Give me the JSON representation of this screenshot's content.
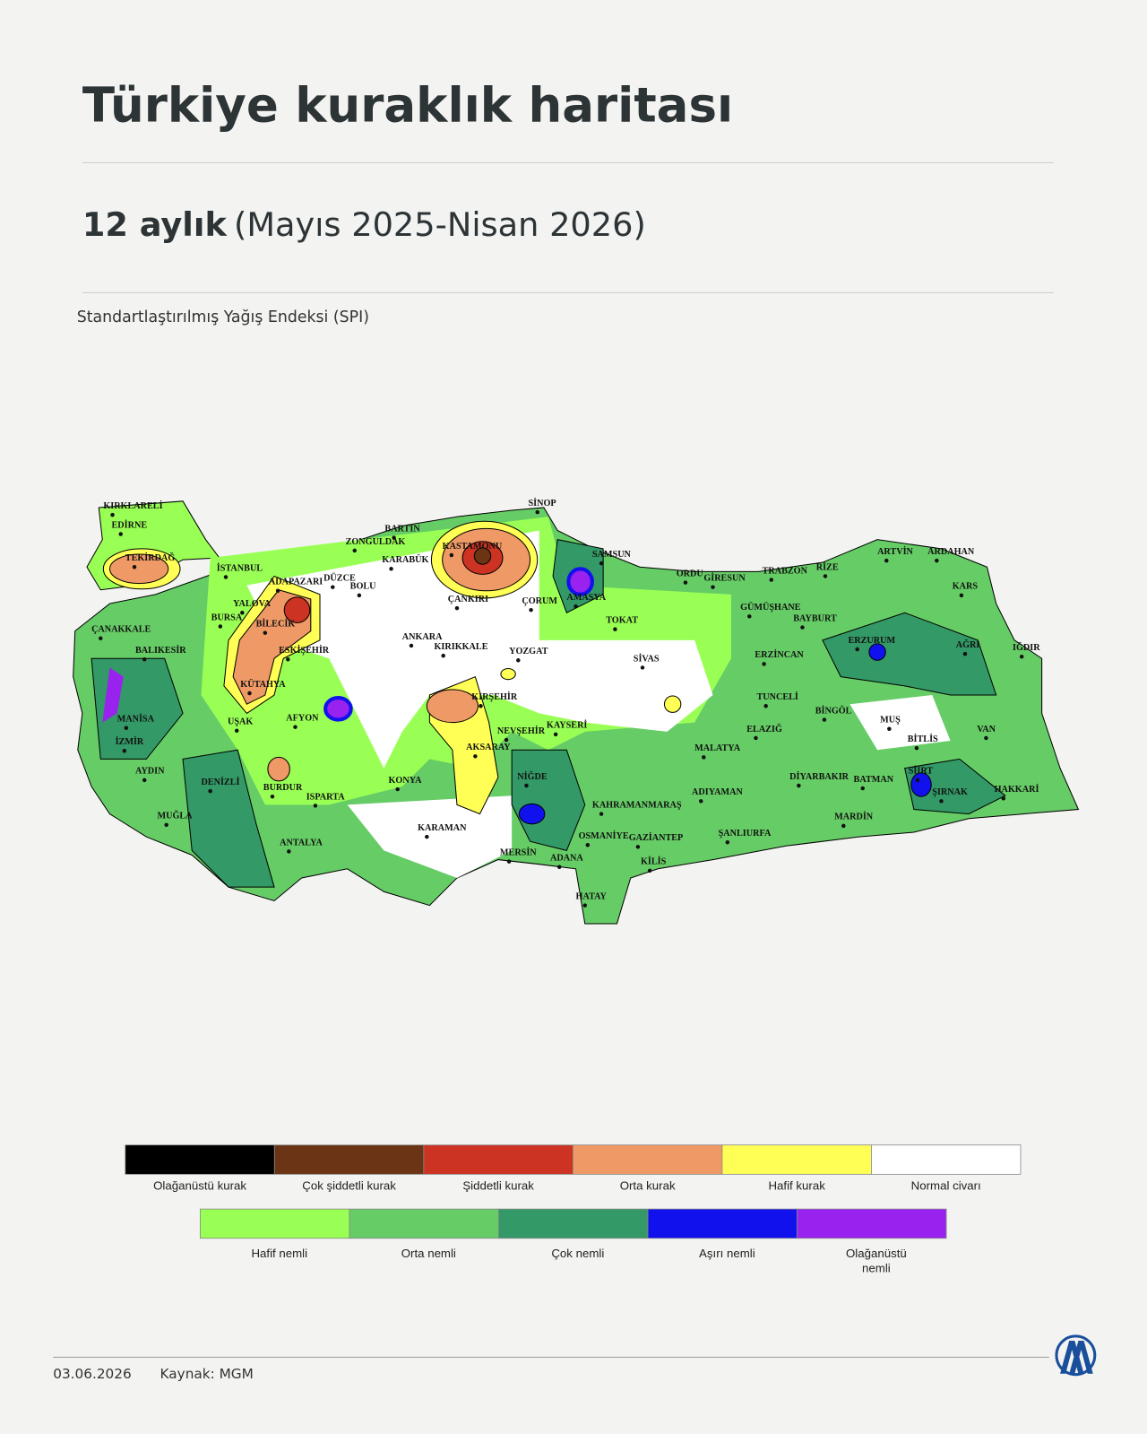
{
  "header": {
    "title": "Türkiye kuraklık haritası",
    "subtitle_bold": "12 aylık",
    "subtitle": "(Mayıs 2025-Nisan 2026)",
    "index_label": "Standartlaştırılmış Yağış Endeksi (SPI)"
  },
  "map": {
    "cities": [
      "KIRKLARELİ",
      "EDİRNE",
      "TEKİRDAĞ",
      "İSTANBUL",
      "ÇANAKKALE",
      "BALIKESİR",
      "BURSA",
      "YALOVA",
      "ADAPAZARI",
      "DÜZCE",
      "BOLU",
      "ZONGULDAK",
      "BARTIN",
      "KARABÜK",
      "KASTAMONU",
      "SİNOP",
      "SAMSUN",
      "ÇANKIRI",
      "ÇORUM",
      "AMASYA",
      "TOKAT",
      "ORDU",
      "GİRESUN",
      "TRABZON",
      "RİZE",
      "ARTVİN",
      "ARDAHAN",
      "KARS",
      "GÜMÜŞHANE",
      "BAYBURT",
      "ERZURUM",
      "AĞRI",
      "IĞDIR",
      "ERZİNCAN",
      "SİVAS",
      "YOZGAT",
      "KIRIKKALE",
      "ANKARA",
      "ESKİŞEHİR",
      "BİLECİK",
      "KÜTAHYA",
      "MANİSA",
      "İZMİR",
      "AYDIN",
      "UŞAK",
      "AFYON",
      "DENİZLİ",
      "BURDUR",
      "ISPARTA",
      "MUĞLA",
      "ANTALYA",
      "KONYA",
      "KARAMAN",
      "KIRŞEHİR",
      "NEVŞEHİR",
      "AKSARAY",
      "NİĞDE",
      "KAYSERİ",
      "MERSİN",
      "ADANA",
      "OSMANİYE",
      "GAZİANTEP",
      "KAHRAMANMARAŞ",
      "KİLİS",
      "HATAY",
      "ŞANLIURFA",
      "ADIYAMAN",
      "MALATYA",
      "TUNCELİ",
      "ELAZIĞ",
      "BİNGÖL",
      "MUŞ",
      "BİTLİS",
      "VAN",
      "DİYARBAKIR",
      "BATMAN",
      "SİİRT",
      "ŞIRNAK",
      "HAKKARİ",
      "MARDİN"
    ]
  },
  "legend": {
    "rows": [
      [
        {
          "label": "Olağanüstü kurak",
          "color": "#000000"
        },
        {
          "label": "Çok şiddetli kurak",
          "color": "#6b3414"
        },
        {
          "label": "Şiddetli kurak",
          "color": "#cc3322"
        },
        {
          "label": "Orta kurak",
          "color": "#ee9966"
        },
        {
          "label": "Hafif kurak",
          "color": "#ffff55"
        },
        {
          "label": "Normal civarı",
          "color": "#ffffff"
        }
      ],
      [
        {
          "label": "Hafif nemli",
          "color": "#99ff55"
        },
        {
          "label": "Orta nemli",
          "color": "#66cc66"
        },
        {
          "label": "Çok nemli",
          "color": "#339966"
        },
        {
          "label": "Aşırı nemli",
          "color": "#1111ee"
        },
        {
          "label": "Olağanüstü nemli",
          "color": "#9922ee"
        }
      ]
    ]
  },
  "footer": {
    "date": "03.06.2026",
    "source": "Kaynak: MGM"
  }
}
